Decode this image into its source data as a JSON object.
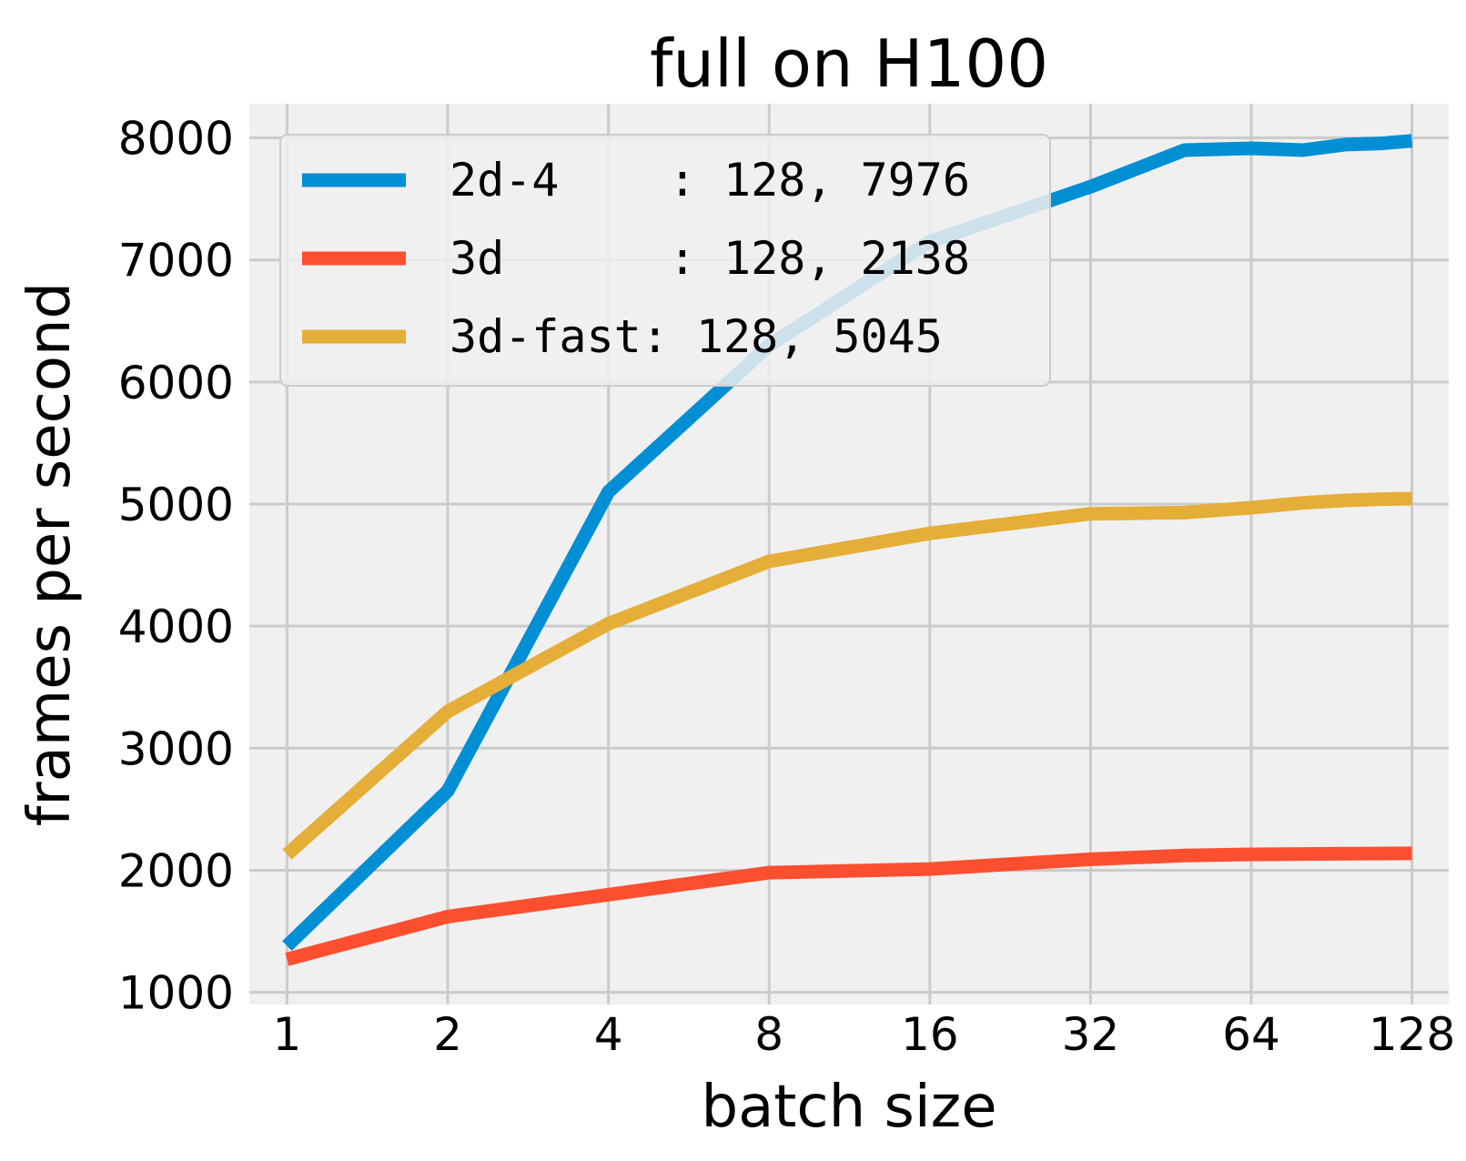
{
  "chart_data": {
    "type": "line",
    "title": "full on H100",
    "xlabel": "batch size",
    "ylabel": "frames per second",
    "x_scale": "log2",
    "x_ticks": [
      1,
      2,
      4,
      8,
      16,
      32,
      64,
      128
    ],
    "x_tick_labels": [
      "1",
      "2",
      "4",
      "8",
      "16",
      "32",
      "64",
      "128"
    ],
    "y_ticks": [
      1000,
      2000,
      3000,
      4000,
      5000,
      6000,
      7000,
      8000
    ],
    "y_tick_labels": [
      "1000",
      "2000",
      "3000",
      "4000",
      "5000",
      "6000",
      "7000",
      "8000"
    ],
    "xlim": [
      0.85,
      150
    ],
    "ylim": [
      900,
      8280
    ],
    "grid": true,
    "legend_position": "top-left",
    "series": [
      {
        "name": "2d-4",
        "legend_label": "2d-4    : 128, 7976",
        "color": "#008fd5",
        "x": [
          1,
          2,
          4,
          8,
          16,
          32,
          48,
          64,
          80,
          96,
          112,
          128
        ],
        "y": [
          1380,
          2650,
          5100,
          6300,
          7150,
          7600,
          7900,
          7915,
          7900,
          7945,
          7955,
          7976
        ]
      },
      {
        "name": "3d",
        "legend_label": "3d      : 128, 2138",
        "color": "#fc4f30",
        "x": [
          1,
          2,
          4,
          8,
          16,
          32,
          48,
          64,
          80,
          96,
          112,
          128
        ],
        "y": [
          1270,
          1620,
          1800,
          1980,
          2010,
          2090,
          2120,
          2130,
          2133,
          2136,
          2137,
          2138
        ]
      },
      {
        "name": "3d-fast",
        "legend_label": "3d-fast: 128, 5045",
        "color": "#e5ae38",
        "x": [
          1,
          2,
          4,
          8,
          16,
          32,
          48,
          64,
          80,
          96,
          112,
          128
        ],
        "y": [
          2130,
          3300,
          4020,
          4530,
          4760,
          4920,
          4930,
          4970,
          5010,
          5030,
          5040,
          5045
        ]
      }
    ]
  }
}
